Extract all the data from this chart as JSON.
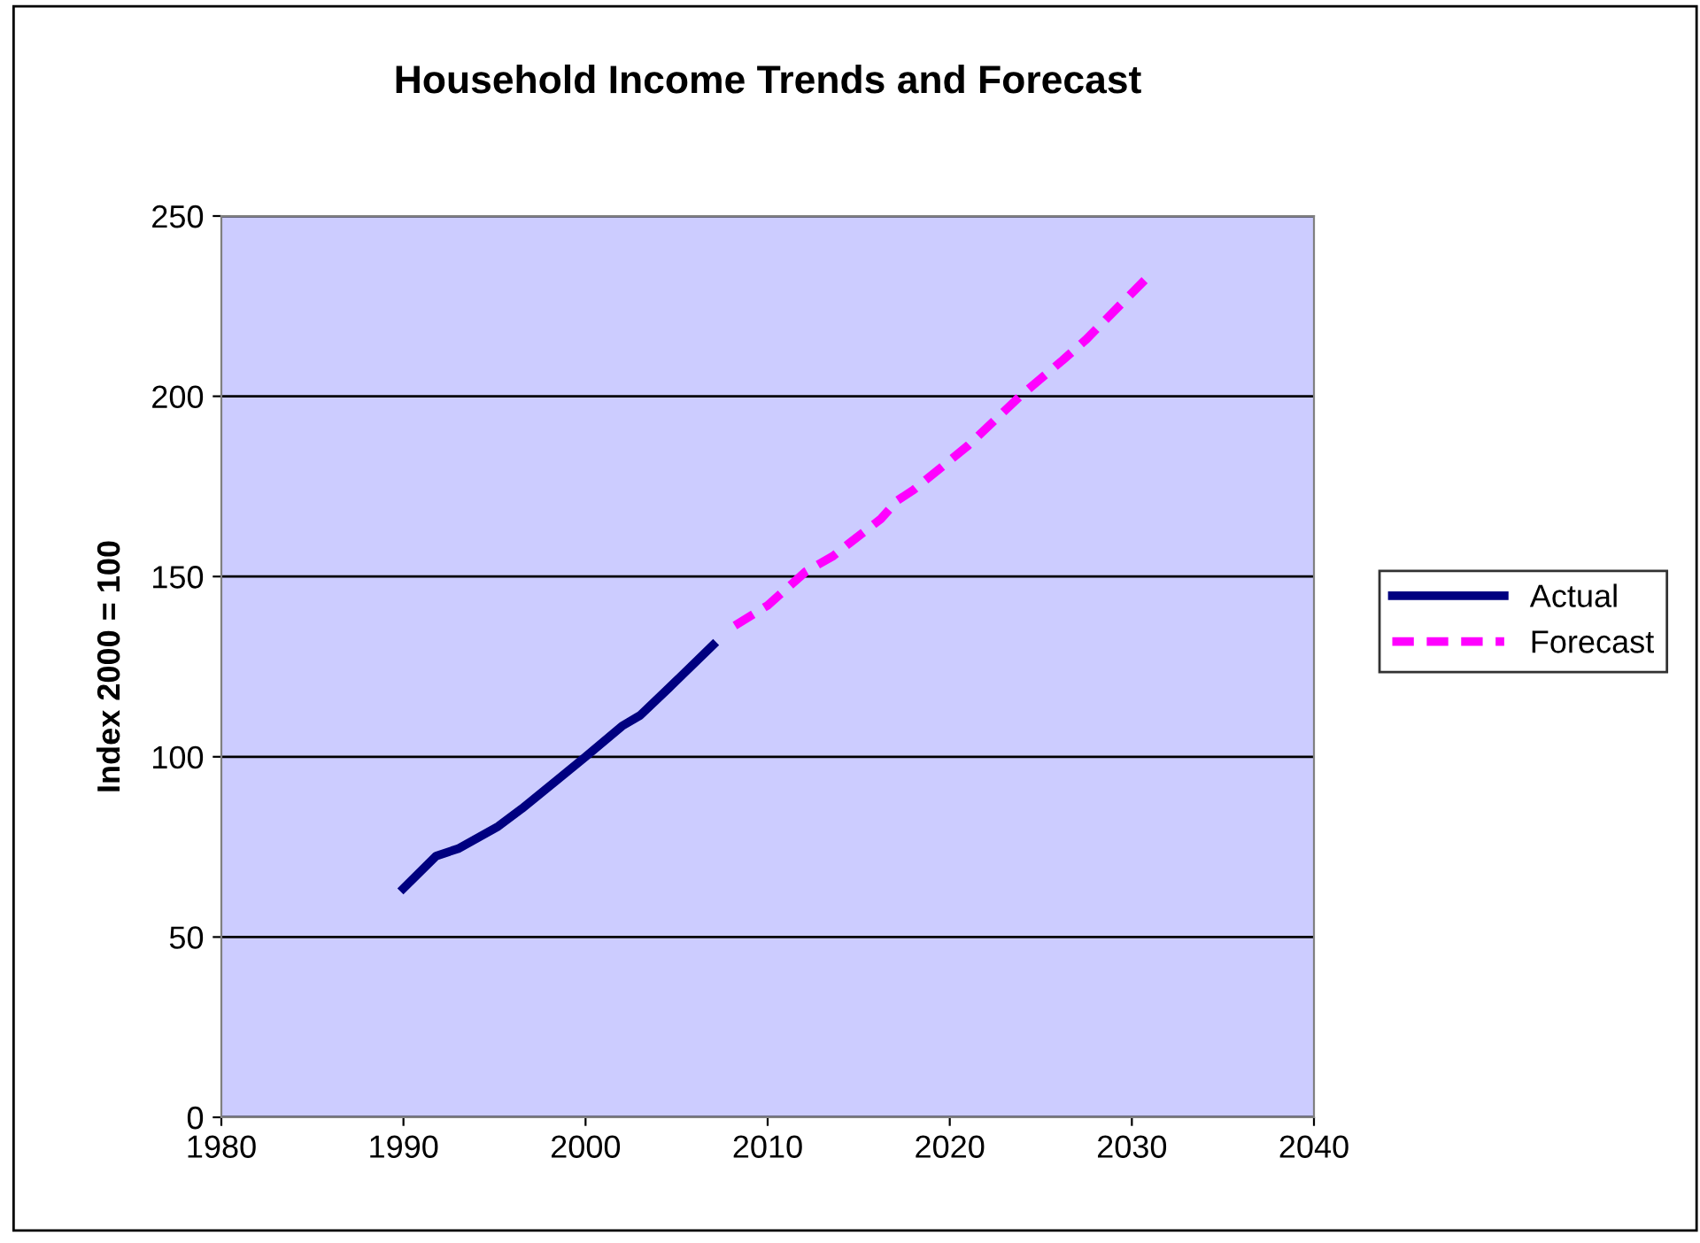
{
  "chart_data": {
    "type": "line",
    "title": "Household Income Trends and Forecast",
    "ylabel": "Index 2000 = 100",
    "xlim": [
      1980,
      2040
    ],
    "xticks": [
      1980,
      1990,
      2000,
      2010,
      2020,
      2030,
      2040
    ],
    "ylim": [
      0,
      250
    ],
    "yticks": [
      0,
      50,
      100,
      150,
      200,
      250
    ],
    "grid": "y",
    "legend": "right",
    "marker": "none",
    "series": [
      {
        "name": "Actual",
        "color": "#000080",
        "line_style": "solid",
        "x": [
          1990,
          1991.8,
          1993,
          1995.2,
          1996.5,
          1998.5,
          2000,
          2002,
          2003,
          2004.6,
          2007
        ],
        "values": [
          63.5,
          72.5,
          74.5,
          80.7,
          85.6,
          93.8,
          100,
          108.5,
          111.5,
          119.2,
          131
        ]
      },
      {
        "name": "Forecast",
        "color": "#ff00ff",
        "line_style": "dashed",
        "x": [
          2008.2,
          2010,
          2012.1,
          2013.6,
          2014.5,
          2016.2,
          2017.1,
          2018,
          2021,
          2023.9,
          2026.2,
          2027.5,
          2030.7
        ],
        "values": [
          136.4,
          142,
          151.4,
          155.7,
          159.3,
          165.9,
          171,
          174,
          186.3,
          200.2,
          210,
          215.8,
          232.2
        ]
      }
    ]
  }
}
